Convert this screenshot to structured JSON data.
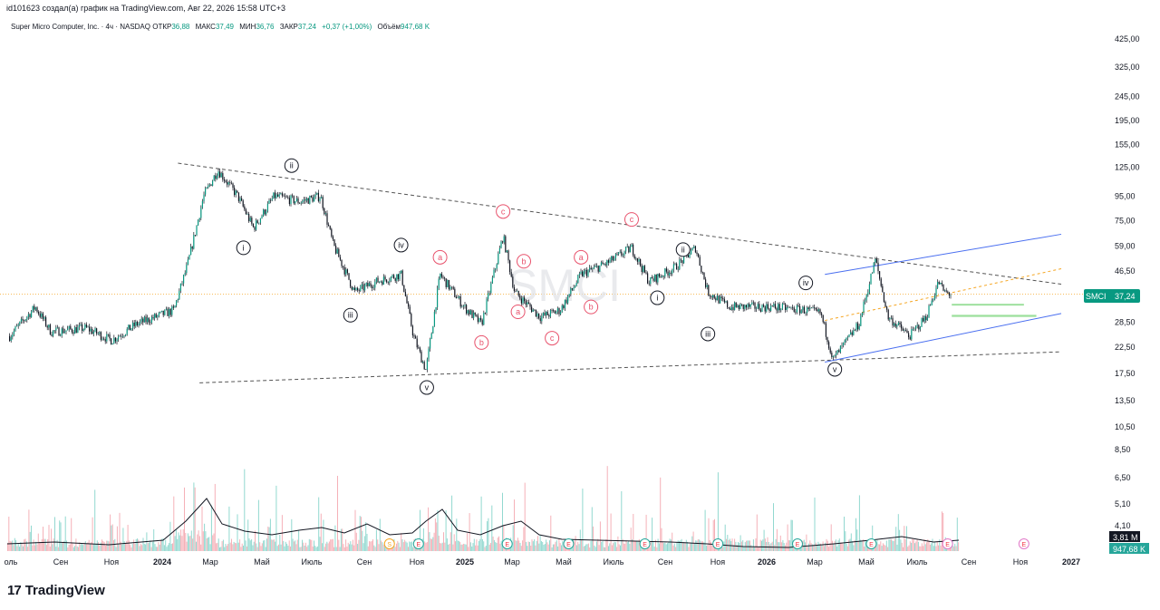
{
  "header": {
    "created_by": "id101623 создал(а) график на TradingView.com, Авг 22, 2026 15:58 UTC+3"
  },
  "symbol_bar": {
    "name": "Super Micro Computer, Inc. · 4ч · NASDAQ",
    "open_label": "ОТКР",
    "open_value": "36,88",
    "high_label": "МАКС",
    "high_value": "37,49",
    "low_label": "МИН",
    "low_value": "36,76",
    "close_label": "ЗАКР",
    "close_value": "37,24",
    "change_value": "+0,37 (+1,00%)",
    "volume_label": "Объём",
    "volume_value": "947,68 K"
  },
  "watermark": "SMCI",
  "price_tag": {
    "symbol": "SMCI",
    "value": "37,24"
  },
  "volume_tags": {
    "avg": "3,81 M",
    "current": "947,68 K"
  },
  "brand": {
    "logo": "17",
    "name": "TradingView"
  },
  "colors": {
    "up": "#089981",
    "down": "#f23645",
    "candle": "#131722",
    "channel": "#4a6ff0",
    "projection": "#f5a623",
    "zone": "#7cd67c",
    "label_red": "#e8526c",
    "volume_up": "#7fd1c8",
    "volume_down": "#f3a3ab"
  },
  "chart_data": {
    "type": "candlestick",
    "y_scale": "log",
    "x_axis_labels": [
      "оль",
      "Сен",
      "Ноя",
      "2024",
      "Мар",
      "Май",
      "Июль",
      "Сен",
      "Ноя",
      "2025",
      "Мар",
      "Май",
      "Июль",
      "Сен",
      "Ноя",
      "2026",
      "Мар",
      "Май",
      "Июль",
      "Сен",
      "Ноя",
      "2027"
    ],
    "x_axis_bold": [
      "2024",
      "2025",
      "2026",
      "2027"
    ],
    "y_axis_labels": [
      "425,00",
      "325,00",
      "245,00",
      "195,00",
      "155,00",
      "125,00",
      "95,00",
      "75,00",
      "59,00",
      "46,50",
      "37,24",
      "28,50",
      "22,50",
      "17,50",
      "13,50",
      "10,50",
      "8,50",
      "6,50",
      "5,10",
      "4,10"
    ],
    "price_path": [
      [
        "2023-07-01",
        25
      ],
      [
        "2023-08-01",
        33
      ],
      [
        "2023-08-20",
        26
      ],
      [
        "2023-10-01",
        27
      ],
      [
        "2023-11-01",
        24
      ],
      [
        "2023-12-01",
        28
      ],
      [
        "2024-01-15",
        32
      ],
      [
        "2024-02-01",
        50
      ],
      [
        "2024-02-20",
        95
      ],
      [
        "2024-03-08",
        122
      ],
      [
        "2024-04-01",
        95
      ],
      [
        "2024-04-20",
        70
      ],
      [
        "2024-05-15",
        95
      ],
      [
        "2024-06-15",
        90
      ],
      [
        "2024-07-10",
        95
      ],
      [
        "2024-07-25",
        60
      ],
      [
        "2024-08-20",
        38
      ],
      [
        "2024-09-15",
        42
      ],
      [
        "2024-10-15",
        45
      ],
      [
        "2024-10-30",
        25
      ],
      [
        "2024-11-14",
        18
      ],
      [
        "2024-12-01",
        45
      ],
      [
        "2024-12-30",
        33
      ],
      [
        "2025-01-20",
        28
      ],
      [
        "2025-02-15",
        65
      ],
      [
        "2025-03-01",
        38
      ],
      [
        "2025-04-01",
        30
      ],
      [
        "2025-04-25",
        32
      ],
      [
        "2025-05-20",
        45
      ],
      [
        "2025-06-20",
        50
      ],
      [
        "2025-07-20",
        58
      ],
      [
        "2025-08-10",
        42
      ],
      [
        "2025-09-10",
        48
      ],
      [
        "2025-10-05",
        58
      ],
      [
        "2025-10-20",
        38
      ],
      [
        "2025-11-15",
        33
      ],
      [
        "2026-01-05",
        33
      ],
      [
        "2026-02-15",
        32
      ],
      [
        "2026-03-05",
        31
      ],
      [
        "2026-03-20",
        20
      ],
      [
        "2026-04-20",
        28
      ],
      [
        "2026-05-10",
        52
      ],
      [
        "2026-05-25",
        30
      ],
      [
        "2026-06-20",
        25
      ],
      [
        "2026-07-10",
        30
      ],
      [
        "2026-07-25",
        42
      ],
      [
        "2026-08-01",
        38
      ],
      [
        "2026-08-10",
        37.24
      ]
    ],
    "trendlines": [
      {
        "name": "upper-resistance",
        "style": "dashed",
        "from": [
          "2024-01-20",
          130
        ],
        "to": [
          "2026-12-20",
          41
        ]
      },
      {
        "name": "lower-support",
        "style": "dashed",
        "from": [
          "2024-02-15",
          16
        ],
        "to": [
          "2026-12-20",
          21.5
        ]
      },
      {
        "name": "channel-top",
        "style": "solid",
        "from": [
          "2026-03-10",
          45
        ],
        "to": [
          "2026-12-20",
          66
        ]
      },
      {
        "name": "channel-bottom",
        "style": "solid",
        "from": [
          "2026-03-10",
          19.5
        ],
        "to": [
          "2026-12-20",
          31
        ]
      },
      {
        "name": "projection",
        "style": "dotted",
        "from": [
          "2026-03-10",
          29
        ],
        "to": [
          "2026-12-20",
          47.5
        ]
      }
    ],
    "price_zones": [
      {
        "from": "2026-08-10",
        "to": "2026-11-20",
        "low": 30,
        "high": 30.6
      },
      {
        "from": "2026-08-10",
        "to": "2026-11-05",
        "low": 33.5,
        "high": 34
      }
    ],
    "wave_labels": [
      {
        "text": "ii",
        "date": "2024-06-05",
        "price": 127,
        "style": "circle-black"
      },
      {
        "text": "i",
        "date": "2024-04-08",
        "price": 58,
        "style": "circle-black"
      },
      {
        "text": "iii",
        "date": "2024-08-15",
        "price": 30.5,
        "style": "circle-black"
      },
      {
        "text": "iv",
        "date": "2024-10-15",
        "price": 59.5,
        "style": "circle-black"
      },
      {
        "text": "v",
        "date": "2024-11-15",
        "price": 15.3,
        "style": "circle-black"
      },
      {
        "text": "a",
        "date": "2024-12-01",
        "price": 53,
        "style": "circle-red"
      },
      {
        "text": "b",
        "date": "2025-01-20",
        "price": 23.5,
        "style": "circle-red"
      },
      {
        "text": "c",
        "date": "2025-02-15",
        "price": 82,
        "style": "circle-red"
      },
      {
        "text": "a",
        "date": "2025-03-05",
        "price": 31.5,
        "style": "circle-red"
      },
      {
        "text": "b",
        "date": "2025-03-12",
        "price": 51,
        "style": "circle-red"
      },
      {
        "text": "c",
        "date": "2025-04-15",
        "price": 24.5,
        "style": "circle-red"
      },
      {
        "text": "a",
        "date": "2025-05-20",
        "price": 53,
        "style": "circle-red"
      },
      {
        "text": "b",
        "date": "2025-06-01",
        "price": 33,
        "style": "circle-red"
      },
      {
        "text": "c",
        "date": "2025-07-20",
        "price": 76,
        "style": "circle-red"
      },
      {
        "text": "i",
        "date": "2025-08-20",
        "price": 36,
        "style": "circle-black"
      },
      {
        "text": "ii",
        "date": "2025-09-20",
        "price": 57,
        "style": "circle-black"
      },
      {
        "text": "iii",
        "date": "2025-10-20",
        "price": 25.5,
        "style": "circle-black"
      },
      {
        "text": "iv",
        "date": "2026-02-15",
        "price": 41.5,
        "style": "circle-black"
      },
      {
        "text": "v",
        "date": "2026-03-22",
        "price": 18.2,
        "style": "circle-black"
      }
    ],
    "events": [
      {
        "label": "S",
        "date": "2024-10-01"
      },
      {
        "label": "E",
        "date": "2024-11-05"
      },
      {
        "label": "E",
        "date": "2025-02-20"
      },
      {
        "label": "E",
        "date": "2025-05-05"
      },
      {
        "label": "E",
        "date": "2025-08-05"
      },
      {
        "label": "E",
        "date": "2025-11-01"
      },
      {
        "label": "E",
        "date": "2026-02-05"
      },
      {
        "label": "E",
        "date": "2026-05-05"
      },
      {
        "label": "E",
        "date": "2026-08-05"
      },
      {
        "label": "E",
        "date": "2026-11-05"
      }
    ],
    "volume_avg_m": 3.81,
    "volume_last_k": 947.68
  }
}
